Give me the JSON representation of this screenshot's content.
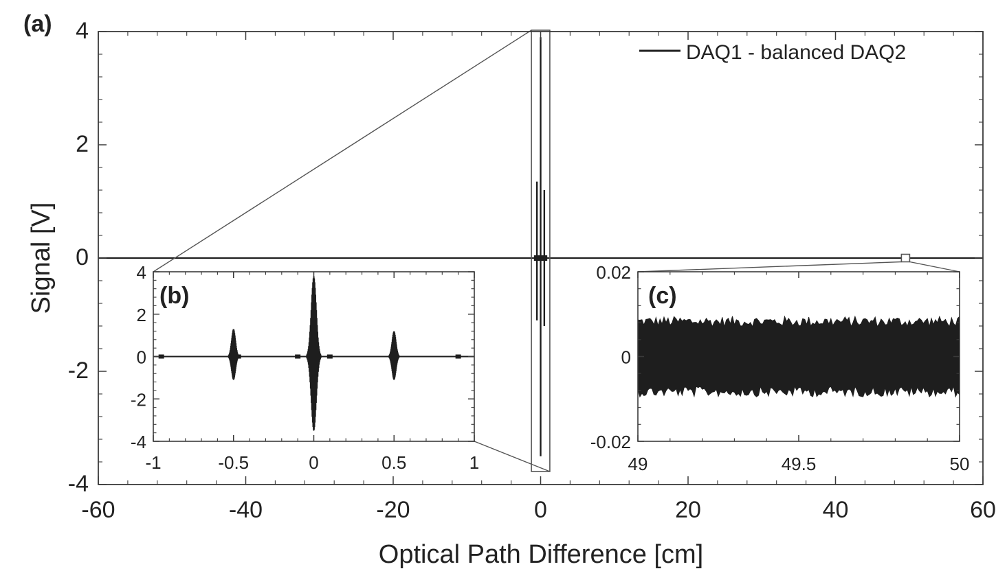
{
  "chart_data": [
    {
      "id": "a",
      "panel_label": "(a)",
      "type": "line",
      "xlabel": "Optical Path Difference [cm]",
      "ylabel": "Signal [V]",
      "xlim": [
        -60,
        60
      ],
      "ylim": [
        -4,
        4
      ],
      "xticks": [
        -60,
        -40,
        -20,
        0,
        20,
        40,
        60
      ],
      "xtick_labels": [
        "-60",
        "-40",
        "-20",
        "0",
        "20",
        "40",
        "60"
      ],
      "yticks": [
        -4,
        -2,
        0,
        2,
        4
      ],
      "ytick_labels": [
        "-4",
        "-2",
        "0",
        "2",
        "4"
      ],
      "legend": [
        "DAQ1 - balanced DAQ2"
      ],
      "legend_position": "top-right",
      "grid": false,
      "series": [
        {
          "name": "DAQ1 - balanced DAQ2",
          "bursts": [
            {
              "x": -0.5,
              "min": -1.1,
              "max": 1.35
            },
            {
              "x": 0.0,
              "min": -3.5,
              "max": 3.9
            },
            {
              "x": 0.5,
              "min": -1.2,
              "max": 1.2
            }
          ],
          "baseline_noise": 0.02
        }
      ]
    },
    {
      "id": "b",
      "panel_label": "(b)",
      "type": "line",
      "xlim": [
        -1,
        1
      ],
      "ylim": [
        -4,
        4
      ],
      "xticks": [
        -1,
        -0.5,
        0,
        0.5,
        1
      ],
      "xtick_labels": [
        "-1",
        "-0.5",
        "0",
        "0.5",
        "1"
      ],
      "yticks": [
        -4,
        -2,
        0,
        2,
        4
      ],
      "ytick_labels": [
        "-4",
        "-2",
        "0",
        "2",
        "4"
      ],
      "series": [
        {
          "name": "DAQ1 - balanced DAQ2",
          "bursts": [
            {
              "x": -0.5,
              "min": -1.1,
              "max": 1.3
            },
            {
              "x": 0.0,
              "min": -3.5,
              "max": 3.8
            },
            {
              "x": 0.5,
              "min": -1.1,
              "max": 1.2
            }
          ]
        }
      ],
      "zoom_source": {
        "x": [
          -1,
          1
        ],
        "y": [
          -4,
          4
        ]
      }
    },
    {
      "id": "c",
      "panel_label": "(c)",
      "type": "line",
      "xlim": [
        49,
        50
      ],
      "ylim": [
        -0.02,
        0.02
      ],
      "xticks": [
        49,
        49.5,
        50
      ],
      "xtick_labels": [
        "49",
        "49.5",
        "50"
      ],
      "yticks": [
        -0.02,
        0,
        0.02
      ],
      "ytick_labels": [
        "-0.02",
        "0",
        "0.02"
      ],
      "series": [
        {
          "name": "DAQ1 - balanced DAQ2",
          "noise_band": {
            "min": -0.007,
            "max": 0.007,
            "peak_max": 0.0095,
            "peak_min": -0.0095
          }
        }
      ],
      "zoom_source": {
        "x": [
          49,
          50
        ],
        "y": [
          -0.02,
          0.02
        ]
      }
    }
  ],
  "colors": {
    "axis": "#3a3a3a",
    "trace": "#1e1e1e",
    "zoom_box": "#555555",
    "background": "#ffffff"
  }
}
